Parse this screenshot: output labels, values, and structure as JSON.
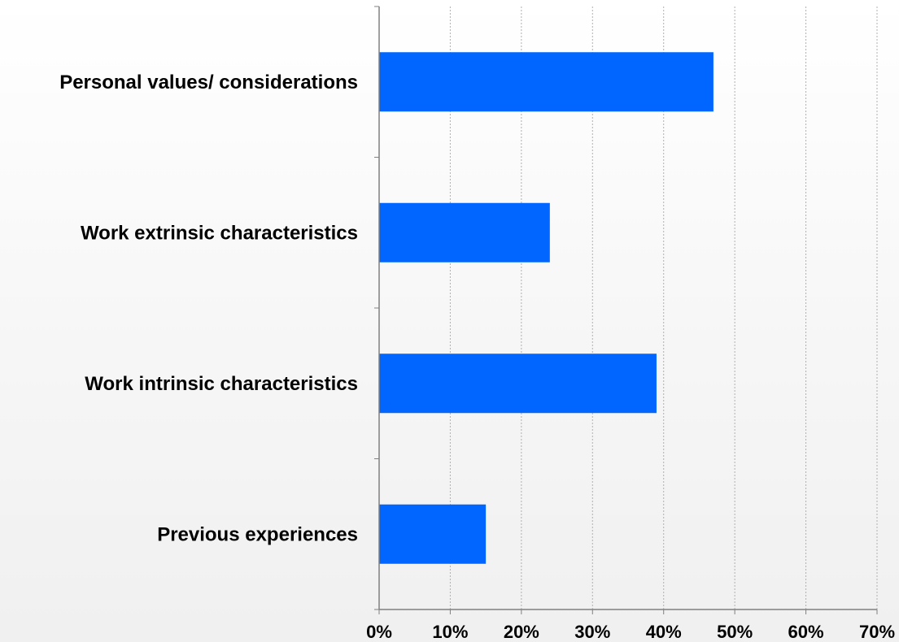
{
  "chart_data": {
    "type": "bar",
    "orientation": "horizontal",
    "categories": [
      "Personal values/ considerations",
      "Work extrinsic characteristics",
      "Work intrinsic characteristics",
      "Previous experiences"
    ],
    "values": [
      47,
      24,
      39,
      15
    ],
    "value_unit": "%",
    "xlim": [
      0,
      70
    ],
    "xticks": [
      "0%",
      "10%",
      "20%",
      "30%",
      "40%",
      "50%",
      "60%",
      "70%"
    ],
    "grid": "vertical dotted",
    "legend": "none",
    "title": "",
    "xlabel": "",
    "ylabel": ""
  },
  "colors": {
    "bar": "#0066ff",
    "axis": "#808080",
    "grid": "#b0b0b0",
    "text": "#000000"
  }
}
